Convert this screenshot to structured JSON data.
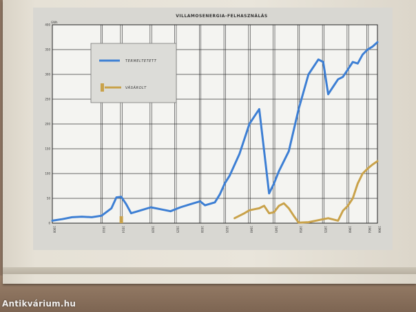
{
  "watermark": "Antikvárium.hu",
  "chart_data": {
    "type": "line",
    "title": "VILLAMOSENERGIA-FELHASZNÁLÁS",
    "ylabel": "GWh",
    "ylim": [
      0,
      400
    ],
    "yticks": [
      0,
      50,
      100,
      150,
      200,
      250,
      300,
      350,
      400
    ],
    "xlim": [
      1900,
      1966
    ],
    "xticks": [
      1900,
      1910,
      1914,
      1920,
      1925,
      1930,
      1935,
      1940,
      1945,
      1950,
      1955,
      1960,
      1964,
      1966
    ],
    "grid": true,
    "legend_position": "top-left",
    "series": [
      {
        "name": "TERMELTETETT",
        "color": "#3d7fd4",
        "x": [
          1900,
          1902,
          1904,
          1906,
          1908,
          1910,
          1912,
          1913,
          1914,
          1915,
          1916,
          1918,
          1920,
          1922,
          1924,
          1926,
          1928,
          1930,
          1931,
          1933,
          1934,
          1935,
          1936,
          1938,
          1940,
          1941,
          1942,
          1944,
          1945,
          1946,
          1948,
          1950,
          1952,
          1954,
          1955,
          1956,
          1957,
          1958,
          1959,
          1960,
          1961,
          1962,
          1963,
          1964,
          1965,
          1966
        ],
        "y": [
          5,
          8,
          12,
          13,
          12,
          15,
          30,
          52,
          53,
          38,
          20,
          26,
          32,
          28,
          24,
          32,
          38,
          44,
          36,
          42,
          58,
          80,
          96,
          140,
          200,
          215,
          230,
          60,
          80,
          105,
          145,
          230,
          300,
          330,
          325,
          260,
          275,
          290,
          295,
          310,
          325,
          322,
          340,
          350,
          356,
          365
        ]
      },
      {
        "name": "VÁSÁROLT",
        "color": "#c9a24a",
        "x": [
          1937,
          1938,
          1939,
          1940,
          1941,
          1942,
          1943,
          1944,
          1945,
          1946,
          1947,
          1948,
          1949,
          1950,
          1952,
          1954,
          1956,
          1958,
          1959,
          1960,
          1961,
          1962,
          1963,
          1964,
          1965,
          1966
        ],
        "y": [
          10,
          15,
          20,
          26,
          28,
          30,
          35,
          20,
          22,
          35,
          40,
          30,
          15,
          1,
          2,
          6,
          10,
          5,
          25,
          35,
          50,
          80,
          100,
          110,
          118,
          125
        ]
      }
    ],
    "bar_marker": {
      "series": "VÁSÁROLT",
      "x": 1914,
      "y": 14
    }
  }
}
